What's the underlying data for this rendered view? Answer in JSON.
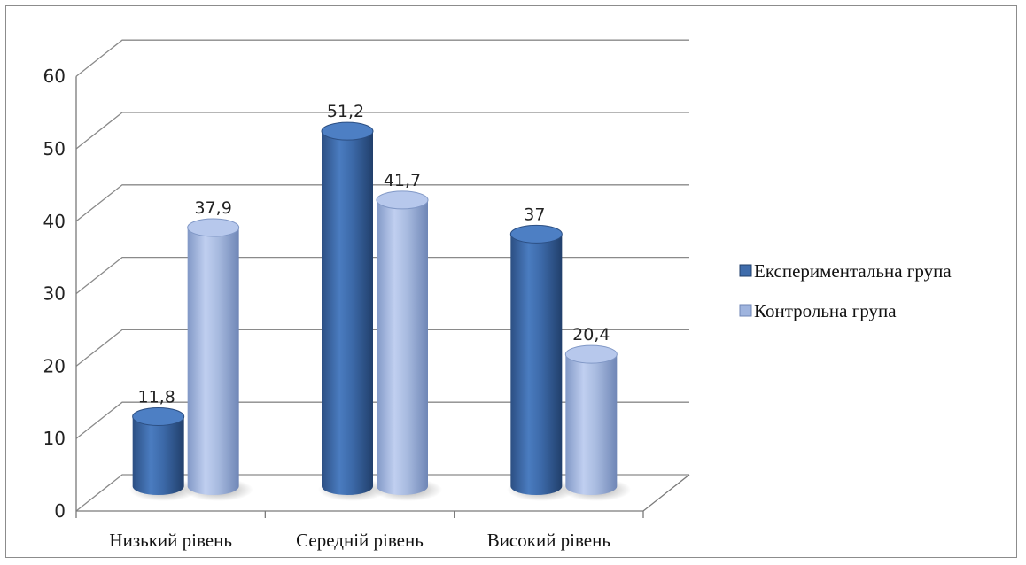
{
  "chart_data": {
    "type": "bar",
    "title": "",
    "xlabel": "",
    "ylabel": "",
    "categories": [
      "Низький рівень",
      "Середній рівень",
      "Високий рівень"
    ],
    "series": [
      {
        "name": "Експериментальна група",
        "values": [
          11.8,
          51.2,
          37
        ],
        "labels": [
          "11,8",
          "51,2",
          "37"
        ],
        "color": "#3f6cab"
      },
      {
        "name": "Контрольна група",
        "values": [
          37.9,
          41.7,
          20.4
        ],
        "labels": [
          "37,9",
          "41,7",
          "20,4"
        ],
        "color": "#9fb4de"
      }
    ],
    "ylim": [
      0,
      60
    ],
    "yticks": [
      0,
      10,
      20,
      30,
      40,
      50,
      60
    ],
    "grid": true,
    "style": "3d-cylinder",
    "legend_position": "right"
  }
}
